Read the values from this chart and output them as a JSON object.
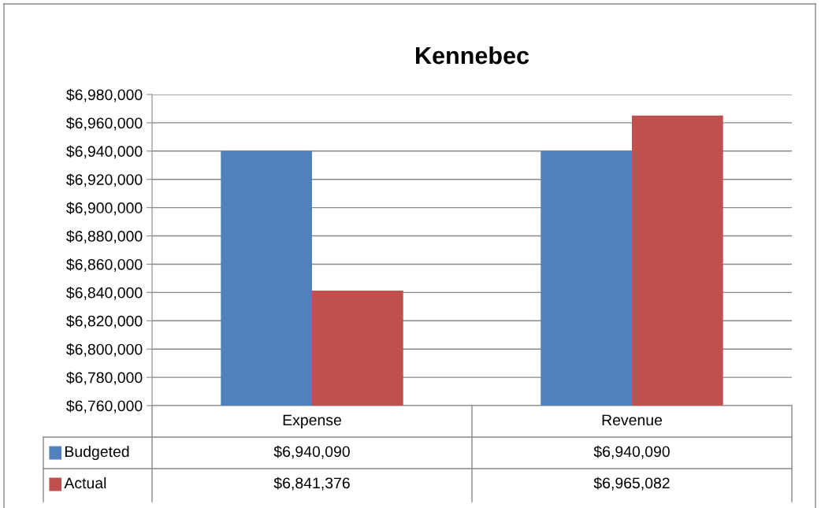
{
  "chart_data": {
    "type": "bar",
    "title": "Kennebec",
    "categories": [
      "Expense",
      "Revenue"
    ],
    "series": [
      {
        "name": "Budgeted",
        "color": "#4f81bd",
        "values": [
          6940090,
          6940090
        ],
        "value_labels": [
          "$6,940,090",
          "$6,940,090"
        ]
      },
      {
        "name": "Actual",
        "color": "#c0504d",
        "values": [
          6841376,
          6965082
        ],
        "value_labels": [
          "$6,841,376",
          "$6,965,082"
        ]
      }
    ],
    "ylim": [
      6760000,
      6980000
    ],
    "yticks": [
      {
        "value": 6760000,
        "label": "$6,760,000"
      },
      {
        "value": 6780000,
        "label": "$6,780,000"
      },
      {
        "value": 6800000,
        "label": "$6,800,000"
      },
      {
        "value": 6820000,
        "label": "$6,820,000"
      },
      {
        "value": 6840000,
        "label": "$6,840,000"
      },
      {
        "value": 6860000,
        "label": "$6,860,000"
      },
      {
        "value": 6880000,
        "label": "$6,880,000"
      },
      {
        "value": 6900000,
        "label": "$6,900,000"
      },
      {
        "value": 6920000,
        "label": "$6,920,000"
      },
      {
        "value": 6940000,
        "label": "$6,940,000"
      },
      {
        "value": 6960000,
        "label": "$6,960,000"
      },
      {
        "value": 6980000,
        "label": "$6,980,000"
      }
    ],
    "grid": "y",
    "legend": "bottom"
  }
}
